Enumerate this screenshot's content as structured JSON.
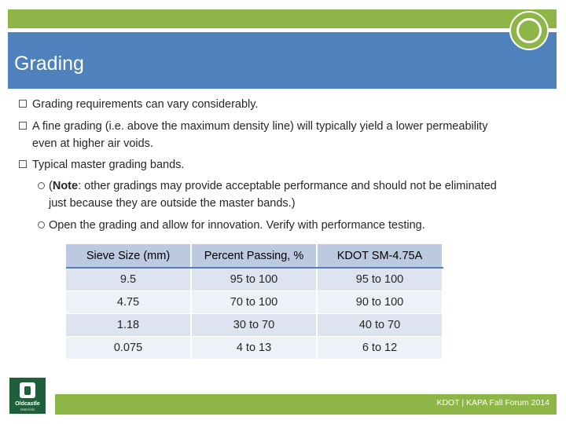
{
  "slide": {
    "title": "Grading",
    "bullets": [
      "Grading requirements can vary considerably.",
      "A fine grading (i.e. above the maximum density line) will typically yield a lower permeability even at higher air voids.",
      "Typical master grading bands."
    ],
    "sub_bullets": [
      {
        "bold": "Note",
        "pre": "(",
        "rest": ": other gradings may provide acceptable performance and should not be eliminated just because they are outside the master bands.)"
      },
      {
        "text": "Open the grading and allow for innovation.  Verify with performance testing."
      }
    ],
    "table": {
      "headers": [
        "Sieve Size (mm)",
        "Percent Passing, %",
        "KDOT SM-4.75A"
      ],
      "rows": [
        [
          "9.5",
          "95 to 100",
          "95 to 100"
        ],
        [
          "4.75",
          "70 to 100",
          "90 to 100"
        ],
        [
          "1.18",
          "30 to 70",
          "40 to 70"
        ],
        [
          "0.075",
          "4 to 13",
          "6 to 12"
        ]
      ]
    },
    "footer": "KDOT | KAPA Fall Forum 2014",
    "logo": {
      "name": "Oldcastle",
      "sub": "Materials"
    }
  },
  "colors": {
    "accent_green": "#8db547",
    "title_blue": "#4f81bd",
    "logo_green": "#1f5f39"
  }
}
